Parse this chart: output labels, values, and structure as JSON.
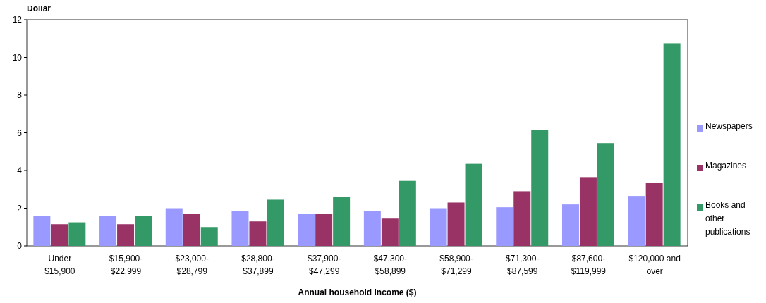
{
  "chart_data": {
    "type": "bar",
    "ylabel": "Dollar",
    "xlabel": "Annual  household Income ($)",
    "categories": [
      "Under\n$15,900",
      "$15,900-\n$22,999",
      "$23,000-\n$28,799",
      "$28,800-\n$37,899",
      "$37,900-\n$47,299",
      "$47,300-\n$58,899",
      "$58,900-\n$71,299",
      "$71,300-\n$87,599",
      "$87,600-\n$119,999",
      "$120,000 and\nover"
    ],
    "series": [
      {
        "name": "Newspapers",
        "color": "#9999ff",
        "values": [
          1.6,
          1.6,
          2.0,
          1.85,
          1.7,
          1.85,
          2.0,
          2.05,
          2.2,
          2.65
        ]
      },
      {
        "name": "Magazines",
        "color": "#993366",
        "values": [
          1.15,
          1.15,
          1.7,
          1.3,
          1.7,
          1.45,
          2.3,
          2.9,
          3.65,
          3.35
        ]
      },
      {
        "name": "Books and\nother\npublications",
        "color": "#339966",
        "values": [
          1.25,
          1.6,
          1.0,
          2.45,
          2.6,
          3.45,
          4.35,
          6.15,
          5.45,
          10.75
        ]
      }
    ],
    "ylim": [
      0,
      12
    ],
    "yticks": [
      0,
      2,
      4,
      6,
      8,
      10,
      12
    ],
    "legend": "right"
  }
}
